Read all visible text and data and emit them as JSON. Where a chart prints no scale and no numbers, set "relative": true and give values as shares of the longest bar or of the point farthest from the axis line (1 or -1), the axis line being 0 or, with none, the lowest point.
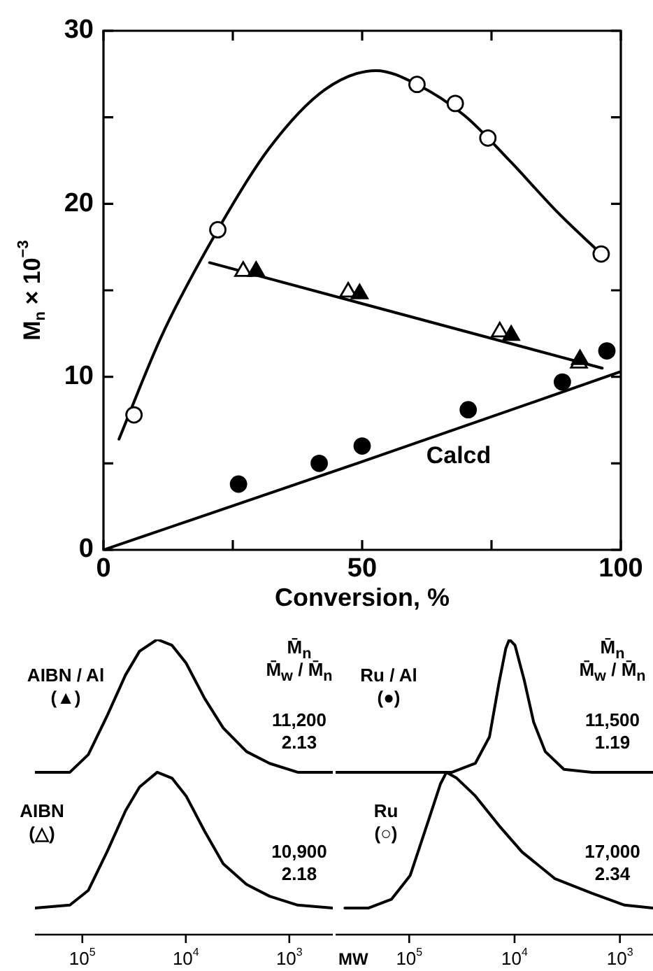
{
  "chart_data": [
    {
      "type": "scatter",
      "xlabel": "Conversion, %",
      "ylabel": "M$_{n}$ × 10$^{−3}$",
      "xlim": [
        0,
        100
      ],
      "xticks": [
        0,
        {
          "value": 25,
          "label": null
        },
        50,
        {
          "value": 75,
          "label": null
        },
        100
      ],
      "ylim": [
        0,
        30
      ],
      "yticks": [
        0,
        {
          "value": 5,
          "label": null
        },
        10,
        {
          "value": 15,
          "label": null
        },
        20,
        {
          "value": 25,
          "label": null
        },
        30
      ],
      "annotations": [
        "Calcd"
      ],
      "series": [
        {
          "type": "line",
          "marker": "none",
          "color": "#000000",
          "x": [
            3.0,
            11.3,
            22.1,
            32,
            42.8,
            52.7,
            60.6,
            69.8,
            78.8,
            87.8,
            96.2
          ],
          "values": [
            6.4,
            12.4,
            18.5,
            23.2,
            26.6,
            27.7,
            26.9,
            25.1,
            22.4,
            19.5,
            17.1
          ]
        },
        {
          "type": "line",
          "marker": "none",
          "color": "#000000",
          "x": [
            20.5,
            96.4
          ],
          "values": [
            16.6,
            10.5
          ]
        },
        {
          "type": "line",
          "marker": "none",
          "color": "#000000",
          "x": [
            0,
            50,
            100
          ],
          "values": [
            0,
            5.1,
            10.3
          ]
        },
        {
          "marker": "circle",
          "color": "#ffffff",
          "x": [
            5.9,
            22.1,
            60.6,
            68.0,
            74.3,
            96.2
          ],
          "values": [
            7.8,
            18.5,
            26.9,
            25.8,
            23.8,
            17.1
          ]
        },
        {
          "marker": "triangle",
          "color": "#ffffff",
          "x": [
            27.0,
            47.3,
            76.6,
            91.9
          ],
          "values": [
            16.1,
            14.9,
            12.6,
            10.8
          ]
        },
        {
          "marker": "triangle",
          "color": "#000000",
          "x": [
            29.5,
            49.5,
            78.8,
            92.1
          ],
          "values": [
            16.1,
            14.8,
            12.4,
            11.0
          ]
        },
        {
          "marker": "circle",
          "color": "#000000",
          "x": [
            26.1,
            41.7,
            50.0,
            70.5,
            88.7,
            97.3
          ],
          "values": [
            3.8,
            5.0,
            6.0,
            8.1,
            9.7,
            11.5
          ]
        }
      ]
    },
    {
      "type": "line",
      "relative": true,
      "log": "x",
      "xlim": [
        287000,
        380
      ],
      "xticks": [
        {
          "value": 100000,
          "label": "10$^{5}$"
        },
        {
          "value": 10000,
          "label": "10$^{4}$"
        },
        {
          "value": 1000,
          "label": "10$^{3}$"
        }
      ],
      "annotations": [
        "AIBN / Al",
        "(▲)",
        "M̄$_{n}$",
        "M̄$_{w}$ / M̄$_{n}$",
        "11,200",
        "2.13",
        "AIBN",
        "(△)",
        "10,900",
        "2.18"
      ],
      "series": [
        {
          "color": "#000000",
          "x": [
            287000,
            132000,
            87500,
            57800,
            38200,
            28000,
            18900,
            13600,
            9950,
            6580,
            4350,
            2590,
            1550,
            830,
            380
          ],
          "values": [
            0.55,
            0.55,
            0.61,
            0.74,
            0.88,
            0.96,
            1,
            0.98,
            0.92,
            0.8,
            0.7,
            0.62,
            0.58,
            0.55,
            0.55
          ]
        },
        {
          "color": "#000000",
          "x": [
            287000,
            132000,
            87500,
            57800,
            38200,
            28000,
            18900,
            13600,
            9950,
            6580,
            4350,
            2590,
            1550,
            830,
            380
          ],
          "values": [
            0.09,
            0.1,
            0.15,
            0.28,
            0.42,
            0.5,
            0.55,
            0.53,
            0.47,
            0.35,
            0.24,
            0.17,
            0.13,
            0.1,
            0.09
          ]
        }
      ]
    },
    {
      "type": "line",
      "relative": true,
      "log": "x",
      "xlabel": "MW",
      "xlim": [
        500000,
        485
      ],
      "xticks": [
        {
          "value": 100000,
          "label": "10$^{5}$"
        },
        {
          "value": 10000,
          "label": "10$^{4}$"
        },
        {
          "value": 1000,
          "label": "10$^{3}$"
        }
      ],
      "annotations": [
        "Ru / Al",
        "(●)",
        "M̄$_{n}$",
        "M̄$_{w}$ / M̄$_{n}$",
        "11,500",
        "1.19",
        "Ru",
        "(○)",
        "17,000",
        "2.34"
      ],
      "series": [
        {
          "color": "#000000",
          "x": [
            500000,
            88500,
            39200,
            23600,
            17300,
            14100,
            12100,
            11200,
            9900,
            8070,
            6590,
            5110,
            3400,
            1840,
            485
          ],
          "values": [
            0.55,
            0.55,
            0.55,
            0.58,
            0.67,
            0.85,
            0.97,
            1,
            0.98,
            0.86,
            0.72,
            0.62,
            0.56,
            0.55,
            0.55
          ]
        },
        {
          "color": "#000000",
          "x": [
            408000,
            245000,
            147000,
            98000,
            65200,
            50600,
            44300,
            35400,
            23600,
            14100,
            8490,
            4160,
            1840,
            904,
            485
          ],
          "values": [
            0.09,
            0.09,
            0.12,
            0.2,
            0.39,
            0.51,
            0.55,
            0.53,
            0.47,
            0.37,
            0.28,
            0.19,
            0.14,
            0.1,
            0.09
          ]
        }
      ]
    }
  ]
}
